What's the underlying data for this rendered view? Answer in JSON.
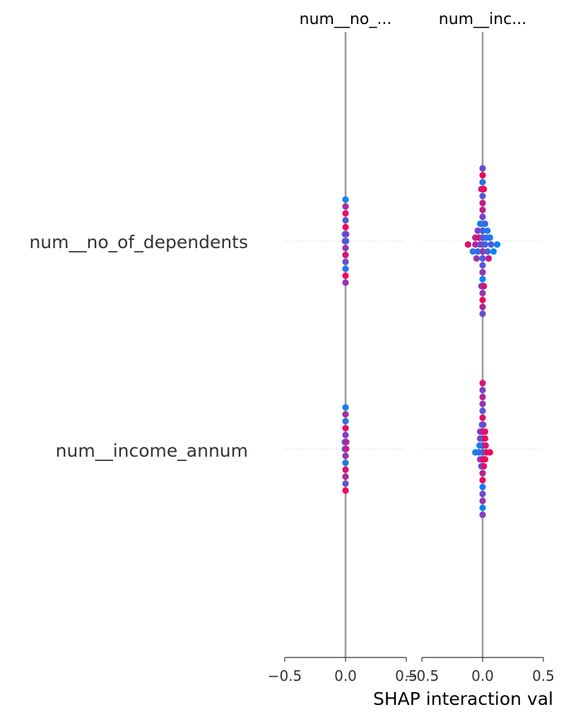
{
  "chart_data": {
    "type": "scatter",
    "kind": "SHAP interaction beeswarm (grid of panels)",
    "panels": [
      {
        "title": "num__no_...",
        "ylim": [
          -0.5,
          0.5
        ]
      },
      {
        "title": "num__inc...",
        "ylim": [
          -0.5,
          0.5
        ]
      }
    ],
    "features": [
      "num__no_of_dependents",
      "num__income_annum"
    ],
    "xlim": [
      -0.5,
      0.5
    ],
    "xticks": [
      -0.5,
      0.0,
      0.5
    ],
    "xtick_labels": [
      "−0.5",
      "0.0",
      "0.5"
    ],
    "xlabel": "SHAP interaction val",
    "colormap": [
      "#008bfb",
      "#ff0051"
    ],
    "grid": false,
    "series": [
      {
        "panel": 0,
        "row": 0,
        "points": [
          {
            "v": 0.0,
            "c": 0.05
          },
          {
            "v": 0.0,
            "c": 0.65
          },
          {
            "v": 0.0,
            "c": 0.9
          },
          {
            "v": 0.0,
            "c": 0.35
          },
          {
            "v": 0.0,
            "c": 0.95
          },
          {
            "v": -0.005,
            "c": 0.1
          },
          {
            "v": 0.005,
            "c": 0.5
          },
          {
            "v": -0.004,
            "c": 0.7
          },
          {
            "v": 0.004,
            "c": 0.3
          },
          {
            "v": 0.0,
            "c": 0.6
          },
          {
            "v": 0.0,
            "c": 0.85
          },
          {
            "v": 0.0,
            "c": 0.4
          },
          {
            "v": 0.0,
            "c": 0.15
          },
          {
            "v": 0.0,
            "c": 0.95
          },
          {
            "v": 0.0,
            "c": 0.6
          }
        ]
      },
      {
        "panel": 1,
        "row": 0,
        "points": [
          {
            "v": 0.0,
            "c": 0.4
          },
          {
            "v": 0.0,
            "c": 0.95
          },
          {
            "v": 0.0,
            "c": 0.15
          },
          {
            "v": -0.01,
            "c": 0.85
          },
          {
            "v": 0.01,
            "c": 0.9
          },
          {
            "v": 0.0,
            "c": 0.35
          },
          {
            "v": 0.0,
            "c": 0.8
          },
          {
            "v": 0.0,
            "c": 0.75
          },
          {
            "v": 0.0,
            "c": 0.45
          },
          {
            "v": -0.02,
            "c": 0.1
          },
          {
            "v": 0.02,
            "c": 0.2
          },
          {
            "v": -0.04,
            "c": 0.5
          },
          {
            "v": 0.0,
            "c": 0.3
          },
          {
            "v": 0.04,
            "c": 0.1
          },
          {
            "v": -0.06,
            "c": 0.75
          },
          {
            "v": -0.03,
            "c": 0.85
          },
          {
            "v": 0.0,
            "c": 0.4
          },
          {
            "v": 0.03,
            "c": 0.2
          },
          {
            "v": 0.06,
            "c": 0.15
          },
          {
            "v": -0.12,
            "c": 0.9
          },
          {
            "v": -0.06,
            "c": 0.7
          },
          {
            "v": -0.02,
            "c": 0.5
          },
          {
            "v": 0.02,
            "c": 0.25
          },
          {
            "v": 0.07,
            "c": 0.3
          },
          {
            "v": 0.12,
            "c": 0.05
          },
          {
            "v": -0.08,
            "c": 0.15
          },
          {
            "v": -0.04,
            "c": 0.2
          },
          {
            "v": 0.0,
            "c": 0.6
          },
          {
            "v": 0.04,
            "c": 0.25
          },
          {
            "v": 0.09,
            "c": 0.05
          },
          {
            "v": -0.05,
            "c": 0.6
          },
          {
            "v": 0.0,
            "c": 0.3
          },
          {
            "v": 0.05,
            "c": 0.8
          },
          {
            "v": 0.0,
            "c": 0.35
          },
          {
            "v": 0.0,
            "c": 0.6
          },
          {
            "v": 0.0,
            "c": 0.05
          },
          {
            "v": -0.01,
            "c": 0.45
          },
          {
            "v": 0.01,
            "c": 0.85
          },
          {
            "v": 0.0,
            "c": 0.6
          },
          {
            "v": 0.0,
            "c": 0.95
          },
          {
            "v": 0.0,
            "c": 0.7
          },
          {
            "v": 0.0,
            "c": 0.4
          }
        ]
      },
      {
        "panel": 0,
        "row": 1,
        "points": [
          {
            "v": 0.0,
            "c": 0.1
          },
          {
            "v": 0.0,
            "c": 0.65
          },
          {
            "v": 0.0,
            "c": 0.2
          },
          {
            "v": 0.0,
            "c": 0.9
          },
          {
            "v": 0.0,
            "c": 0.5
          },
          {
            "v": -0.006,
            "c": 0.25
          },
          {
            "v": 0.006,
            "c": 0.7
          },
          {
            "v": -0.005,
            "c": 0.1
          },
          {
            "v": 0.005,
            "c": 0.8
          },
          {
            "v": 0.0,
            "c": 0.6
          },
          {
            "v": 0.0,
            "c": 0.15
          },
          {
            "v": 0.0,
            "c": 0.85
          },
          {
            "v": 0.0,
            "c": 0.7
          },
          {
            "v": 0.0,
            "c": 0.4
          },
          {
            "v": 0.0,
            "c": 0.95
          }
        ]
      },
      {
        "panel": 1,
        "row": 1,
        "points": [
          {
            "v": 0.0,
            "c": 0.85
          },
          {
            "v": 0.0,
            "c": 0.5
          },
          {
            "v": 0.0,
            "c": 0.7
          },
          {
            "v": 0.0,
            "c": 0.6
          },
          {
            "v": 0.0,
            "c": 0.35
          },
          {
            "v": 0.0,
            "c": 0.9
          },
          {
            "v": -0.005,
            "c": 0.2
          },
          {
            "v": 0.005,
            "c": 0.45
          },
          {
            "v": -0.02,
            "c": 0.5
          },
          {
            "v": 0.0,
            "c": 0.7
          },
          {
            "v": 0.02,
            "c": 0.9
          },
          {
            "v": -0.02,
            "c": 0.55
          },
          {
            "v": 0.0,
            "c": 0.3
          },
          {
            "v": 0.02,
            "c": 0.95
          },
          {
            "v": -0.025,
            "c": 0.1
          },
          {
            "v": 0.0,
            "c": 0.2
          },
          {
            "v": 0.025,
            "c": 0.85
          },
          {
            "v": -0.06,
            "c": 0.05
          },
          {
            "v": -0.03,
            "c": 0.15
          },
          {
            "v": 0.0,
            "c": 0.2
          },
          {
            "v": 0.03,
            "c": 0.9
          },
          {
            "v": 0.06,
            "c": 0.95
          },
          {
            "v": -0.02,
            "c": 0.6
          },
          {
            "v": 0.0,
            "c": 0.75
          },
          {
            "v": 0.02,
            "c": 0.95
          },
          {
            "v": -0.01,
            "c": 0.3
          },
          {
            "v": 0.01,
            "c": 0.85
          },
          {
            "v": 0.0,
            "c": 0.7
          },
          {
            "v": 0.0,
            "c": 0.9
          },
          {
            "v": 0.0,
            "c": 0.1
          },
          {
            "v": 0.0,
            "c": 0.45
          },
          {
            "v": 0.0,
            "c": 0.6
          },
          {
            "v": 0.0,
            "c": 0.05
          },
          {
            "v": 0.0,
            "c": 0.5
          }
        ]
      }
    ]
  }
}
